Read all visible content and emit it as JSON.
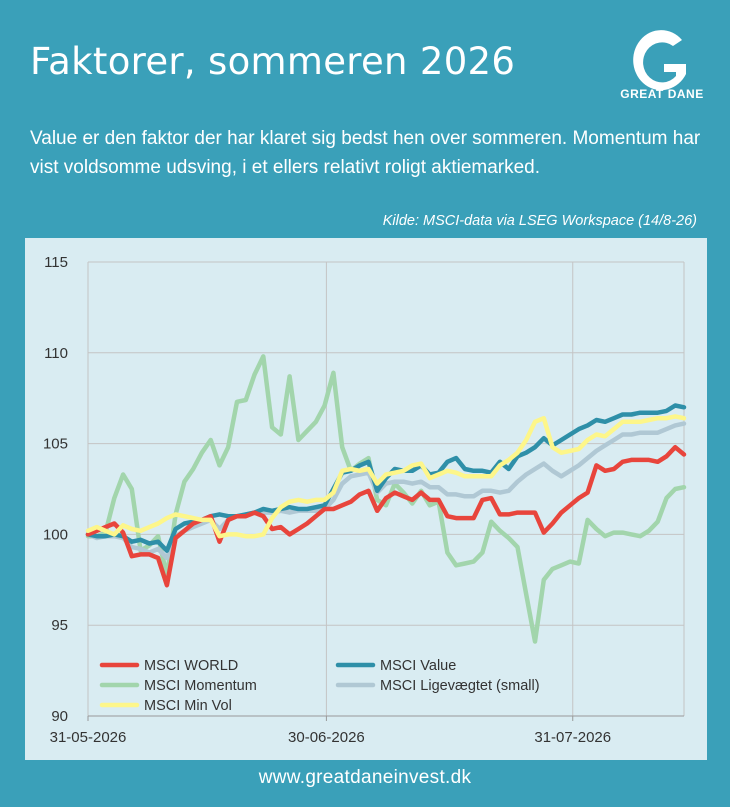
{
  "header": {
    "title": "Faktorer, sommeren 2026",
    "logo_text": "GREAT DANE",
    "subtitle": "Value er den faktor der har klaret sig bedst hen over sommeren. Momentum har vist voldsomme udsving, i et ellers relativt roligt aktiemarked.",
    "source": "Kilde: MSCI-data via LSEG Workspace (14/8-26)"
  },
  "footer": {
    "url": "www.greatdaneinvest.dk"
  },
  "chart_data": {
    "type": "line",
    "title": "",
    "xlabel": "",
    "ylabel": "",
    "x_start": "31-05-2026",
    "x_end": "14-08-2026",
    "x_ticks": [
      "31-05-2026",
      "30-06-2026",
      "31-07-2026"
    ],
    "ylim": [
      90,
      115
    ],
    "y_ticks": [
      90,
      95,
      100,
      105,
      110,
      115
    ],
    "grid": true,
    "legend_position": "bottom-left",
    "series": [
      {
        "name": "MSCI WORLD",
        "color": "#e8453c",
        "values": [
          100.0,
          100.2,
          100.4,
          100.6,
          100.1,
          98.8,
          98.9,
          98.9,
          98.7,
          97.2,
          99.8,
          100.2,
          100.6,
          100.8,
          101.0,
          99.6,
          100.8,
          101.0,
          101.0,
          101.2,
          101.0,
          100.3,
          100.4,
          100.0,
          100.3,
          100.6,
          101.0,
          101.4,
          101.4,
          101.6,
          101.8,
          102.2,
          102.4,
          101.3,
          102.0,
          102.3,
          102.1,
          101.9,
          102.3,
          101.9,
          101.9,
          101.0,
          100.9,
          100.9,
          100.9,
          101.9,
          102.0,
          101.1,
          101.1,
          101.2,
          101.2,
          101.2,
          100.1,
          100.6,
          101.2,
          101.6,
          102.0,
          102.3,
          103.8,
          103.5,
          103.6,
          104.0,
          104.1,
          104.1,
          104.1,
          104.0,
          104.3,
          104.8,
          104.4
        ]
      },
      {
        "name": "MSCI Value",
        "color": "#2e8fa8",
        "values": [
          100.0,
          99.9,
          99.9,
          100.0,
          99.9,
          99.6,
          99.7,
          99.5,
          99.6,
          99.1,
          100.3,
          100.6,
          100.7,
          100.8,
          101.0,
          101.1,
          101.0,
          101.0,
          101.1,
          101.2,
          101.4,
          101.3,
          101.4,
          101.5,
          101.4,
          101.4,
          101.5,
          101.6,
          102.5,
          103.4,
          103.5,
          103.8,
          104.0,
          102.4,
          103.1,
          103.6,
          103.5,
          103.5,
          103.8,
          103.3,
          103.4,
          104.0,
          104.2,
          103.6,
          103.5,
          103.5,
          103.4,
          104.0,
          103.6,
          104.3,
          104.5,
          104.8,
          105.3,
          104.9,
          105.2,
          105.5,
          105.8,
          106.0,
          106.3,
          106.2,
          106.4,
          106.6,
          106.6,
          106.7,
          106.7,
          106.7,
          106.8,
          107.1,
          107.0
        ]
      },
      {
        "name": "MSCI Momentum",
        "color": "#a2d5ac",
        "values": [
          99.9,
          99.9,
          100.1,
          102.0,
          103.3,
          102.5,
          99.1,
          99.4,
          99.9,
          97.7,
          101.1,
          102.9,
          103.6,
          104.5,
          105.2,
          103.8,
          104.8,
          107.3,
          107.4,
          108.8,
          109.8,
          105.9,
          105.5,
          108.7,
          105.2,
          105.7,
          106.2,
          107.1,
          108.9,
          104.8,
          103.5,
          103.9,
          104.2,
          101.9,
          101.6,
          102.8,
          102.3,
          101.7,
          102.4,
          101.6,
          101.8,
          99.0,
          98.3,
          98.4,
          98.5,
          99.0,
          100.7,
          100.2,
          99.8,
          99.3,
          96.7,
          94.1,
          97.5,
          98.1,
          98.3,
          98.5,
          98.4,
          100.8,
          100.3,
          99.9,
          100.1,
          100.1,
          100.0,
          99.9,
          100.2,
          100.7,
          102.0,
          102.5,
          102.6
        ]
      },
      {
        "name": "MSCI Ligevægtet (small)",
        "color": "#b0c8d4",
        "values": [
          100.0,
          99.8,
          99.9,
          99.9,
          99.8,
          99.3,
          99.2,
          99.0,
          99.2,
          98.7,
          99.9,
          100.2,
          100.4,
          100.6,
          100.8,
          100.3,
          100.8,
          101.0,
          101.1,
          101.2,
          101.2,
          101.2,
          101.3,
          101.2,
          101.3,
          101.3,
          101.3,
          101.4,
          101.9,
          102.8,
          103.2,
          103.3,
          103.4,
          102.3,
          102.8,
          102.9,
          102.9,
          102.8,
          102.9,
          102.6,
          102.6,
          102.2,
          102.2,
          102.1,
          102.1,
          102.4,
          102.4,
          102.3,
          102.4,
          102.9,
          103.3,
          103.6,
          103.9,
          103.5,
          103.2,
          103.5,
          103.8,
          104.2,
          104.6,
          104.9,
          105.2,
          105.5,
          105.5,
          105.6,
          105.6,
          105.6,
          105.8,
          106.0,
          106.1
        ]
      },
      {
        "name": "MSCI Min Vol",
        "color": "#fdf68a",
        "values": [
          100.2,
          100.4,
          100.2,
          100.0,
          100.5,
          100.3,
          100.2,
          100.4,
          100.6,
          100.9,
          101.1,
          101.0,
          100.9,
          100.8,
          100.8,
          99.9,
          100.0,
          100.0,
          99.9,
          99.9,
          100.0,
          100.9,
          101.5,
          101.8,
          101.9,
          101.8,
          101.9,
          101.9,
          102.3,
          103.5,
          103.6,
          103.5,
          103.6,
          102.8,
          103.3,
          103.4,
          103.5,
          103.8,
          103.9,
          103.1,
          103.3,
          103.5,
          103.4,
          103.2,
          103.2,
          103.2,
          103.2,
          103.8,
          104.1,
          104.5,
          105.2,
          106.2,
          106.4,
          104.8,
          104.5,
          104.6,
          104.7,
          105.2,
          105.5,
          105.4,
          105.8,
          106.2,
          106.2,
          106.2,
          106.3,
          106.4,
          106.4,
          106.5,
          106.4
        ]
      }
    ]
  }
}
